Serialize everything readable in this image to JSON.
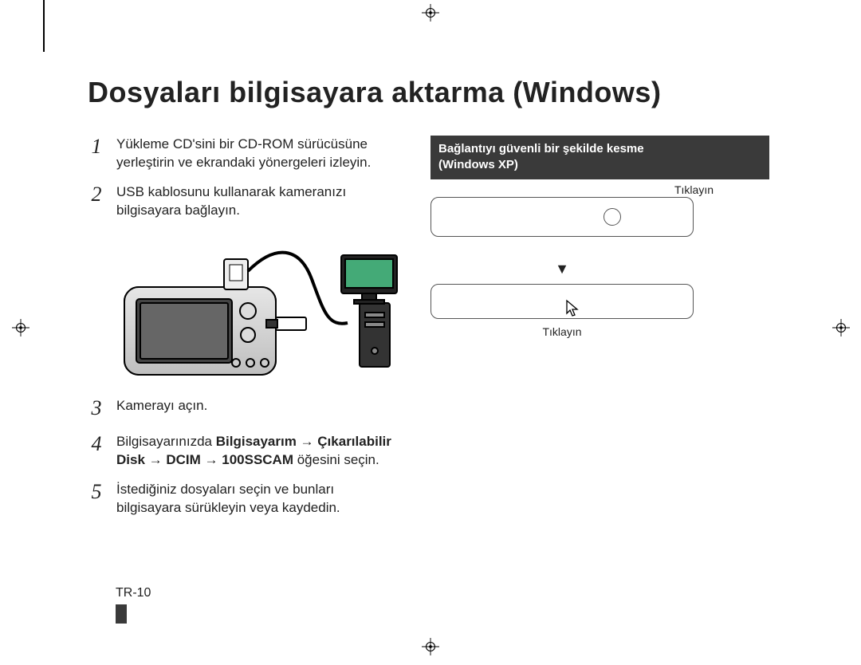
{
  "title": "Dosyaları bilgisayara aktarma (Windows)",
  "steps": [
    {
      "num": "1",
      "text": "Yükleme CD'sini bir CD-ROM sürücüsüne yerleştirin ve ekrandaki yönergeleri izleyin."
    },
    {
      "num": "2",
      "text": "USB kablosunu kullanarak kameranızı bilgisayara bağlayın."
    },
    {
      "num": "3",
      "text": "Kamerayı açın."
    },
    {
      "num": "4",
      "html": "Bilgisayarınızda <b>Bilgisayarım → Çıkarılabilir Disk → DCIM → 100SSCAM</b> öğesini seçin."
    },
    {
      "num": "5",
      "text": "İstediğiniz dosyaları seçin ve bunları bilgisayara sürükleyin veya kaydedin."
    }
  ],
  "banner": {
    "line1": "Bağlantıyı güvenli bir şekilde kesme",
    "line2": "(Windows XP)"
  },
  "tray": {
    "label1": "Tıklayın",
    "label2": "Tıklayın",
    "arrow": "▼"
  },
  "footer": "TR-10",
  "colors": {
    "banner_bg": "#3a3a3a",
    "banner_fg": "#ffffff",
    "text": "#222222",
    "border": "#555555"
  }
}
